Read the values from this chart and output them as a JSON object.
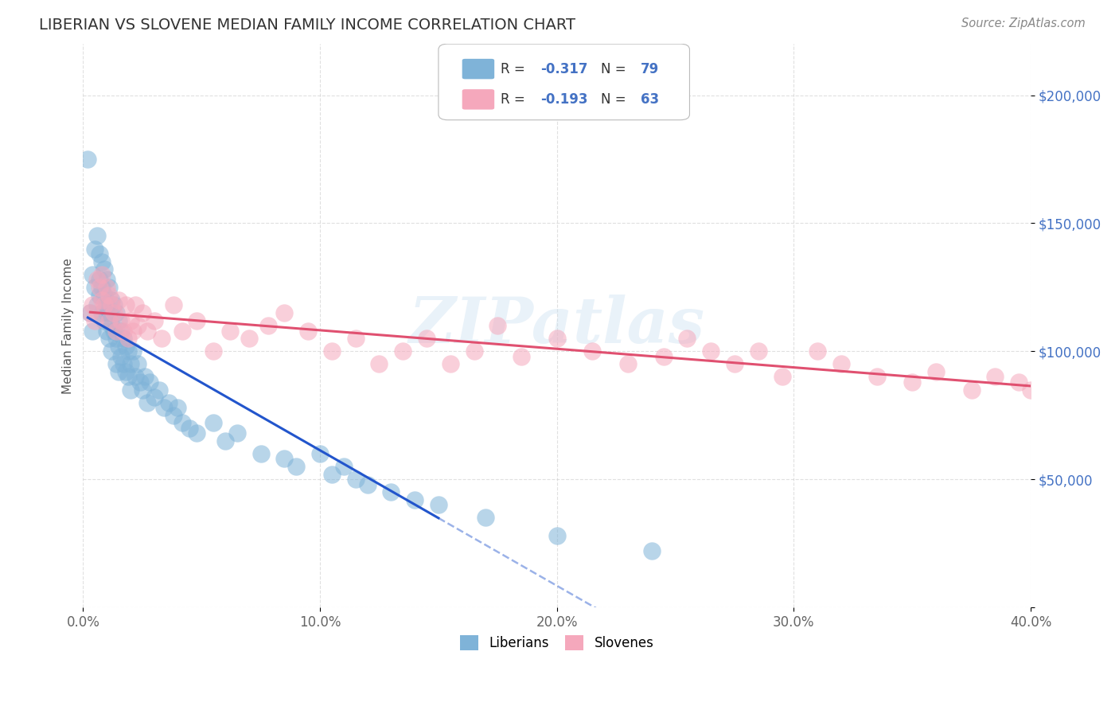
{
  "title": "LIBERIAN VS SLOVENE MEDIAN FAMILY INCOME CORRELATION CHART",
  "source": "Source: ZipAtlas.com",
  "ylabel": "Median Family Income",
  "xlim": [
    0.0,
    0.4
  ],
  "ylim": [
    0,
    220000
  ],
  "yticks": [
    0,
    50000,
    100000,
    150000,
    200000
  ],
  "ytick_labels": [
    "",
    "$50,000",
    "$100,000",
    "$150,000",
    "$200,000"
  ],
  "xticks": [
    0.0,
    0.1,
    0.2,
    0.3,
    0.4
  ],
  "xtick_labels": [
    "0.0%",
    "10.0%",
    "20.0%",
    "30.0%",
    "40.0%"
  ],
  "liberian_color": "#7fb3d8",
  "slovene_color": "#f5a8bc",
  "liberian_line_color": "#2255cc",
  "slovene_line_color": "#e05070",
  "liberian_R": -0.317,
  "liberian_N": 79,
  "slovene_R": -0.193,
  "slovene_N": 63,
  "legend_label_liberian": "Liberians",
  "legend_label_slovene": "Slovenes",
  "watermark": "ZIPatlas",
  "background_color": "#ffffff",
  "grid_color": "#cccccc",
  "title_color": "#333333",
  "axis_label_color": "#555555",
  "tick_value_color": "#4472c4",
  "liberian_x": [
    0.002,
    0.003,
    0.004,
    0.004,
    0.005,
    0.005,
    0.006,
    0.006,
    0.007,
    0.007,
    0.007,
    0.008,
    0.008,
    0.008,
    0.009,
    0.009,
    0.009,
    0.01,
    0.01,
    0.01,
    0.01,
    0.011,
    0.011,
    0.011,
    0.012,
    0.012,
    0.012,
    0.013,
    0.013,
    0.014,
    0.014,
    0.014,
    0.015,
    0.015,
    0.015,
    0.016,
    0.016,
    0.017,
    0.017,
    0.018,
    0.018,
    0.019,
    0.019,
    0.02,
    0.02,
    0.021,
    0.022,
    0.023,
    0.024,
    0.025,
    0.026,
    0.027,
    0.028,
    0.03,
    0.032,
    0.034,
    0.036,
    0.038,
    0.04,
    0.042,
    0.045,
    0.048,
    0.055,
    0.06,
    0.065,
    0.075,
    0.085,
    0.09,
    0.1,
    0.105,
    0.11,
    0.115,
    0.12,
    0.13,
    0.14,
    0.15,
    0.17,
    0.2,
    0.24
  ],
  "liberian_y": [
    175000,
    115000,
    130000,
    108000,
    140000,
    125000,
    145000,
    118000,
    138000,
    128000,
    122000,
    135000,
    125000,
    115000,
    132000,
    122000,
    112000,
    128000,
    118000,
    108000,
    115000,
    125000,
    115000,
    105000,
    120000,
    110000,
    100000,
    118000,
    108000,
    115000,
    105000,
    95000,
    112000,
    102000,
    92000,
    108000,
    98000,
    105000,
    95000,
    102000,
    92000,
    100000,
    90000,
    95000,
    85000,
    100000,
    90000,
    95000,
    88000,
    85000,
    90000,
    80000,
    88000,
    82000,
    85000,
    78000,
    80000,
    75000,
    78000,
    72000,
    70000,
    68000,
    72000,
    65000,
    68000,
    60000,
    58000,
    55000,
    60000,
    52000,
    55000,
    50000,
    48000,
    45000,
    42000,
    40000,
    35000,
    28000,
    22000
  ],
  "slovene_x": [
    0.003,
    0.004,
    0.005,
    0.006,
    0.007,
    0.008,
    0.008,
    0.009,
    0.01,
    0.011,
    0.011,
    0.012,
    0.013,
    0.014,
    0.015,
    0.016,
    0.017,
    0.018,
    0.019,
    0.02,
    0.021,
    0.022,
    0.023,
    0.025,
    0.027,
    0.03,
    0.033,
    0.038,
    0.042,
    0.048,
    0.055,
    0.062,
    0.07,
    0.078,
    0.085,
    0.095,
    0.105,
    0.115,
    0.125,
    0.135,
    0.145,
    0.155,
    0.165,
    0.175,
    0.185,
    0.2,
    0.215,
    0.23,
    0.245,
    0.255,
    0.265,
    0.275,
    0.285,
    0.295,
    0.31,
    0.32,
    0.335,
    0.35,
    0.36,
    0.375,
    0.385,
    0.395,
    0.4
  ],
  "slovene_y": [
    115000,
    118000,
    112000,
    128000,
    125000,
    130000,
    120000,
    118000,
    125000,
    122000,
    112000,
    118000,
    115000,
    108000,
    120000,
    112000,
    108000,
    118000,
    105000,
    112000,
    108000,
    118000,
    110000,
    115000,
    108000,
    112000,
    105000,
    118000,
    108000,
    112000,
    100000,
    108000,
    105000,
    110000,
    115000,
    108000,
    100000,
    105000,
    95000,
    100000,
    105000,
    95000,
    100000,
    110000,
    98000,
    105000,
    100000,
    95000,
    98000,
    105000,
    100000,
    95000,
    100000,
    90000,
    100000,
    95000,
    90000,
    88000,
    92000,
    85000,
    90000,
    88000,
    85000
  ]
}
